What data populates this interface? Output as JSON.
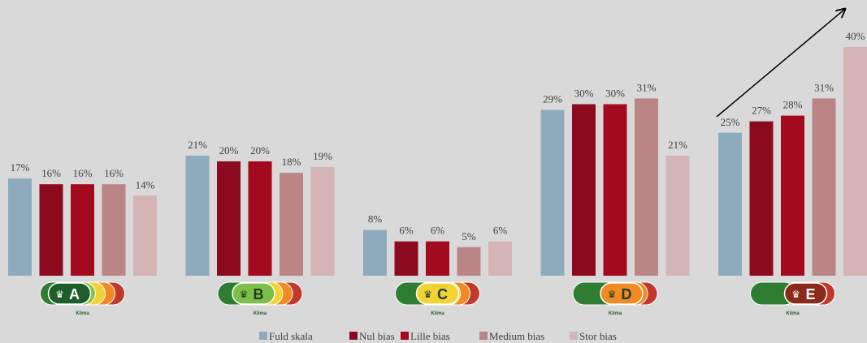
{
  "chart_data": {
    "type": "bar",
    "categories": [
      "A",
      "B",
      "C",
      "D",
      "E"
    ],
    "badge_caption": "Klima",
    "series": [
      {
        "name": "Fuld skala",
        "color": "#8eabbd",
        "values": [
          17,
          21,
          8,
          29,
          25
        ],
        "value_labels": [
          "17%",
          "21%",
          "8%",
          "29%",
          "25%"
        ]
      },
      {
        "name": "Nul bias",
        "color": "#8b0a1e",
        "values": [
          16,
          20,
          6,
          30,
          27
        ],
        "value_labels": [
          "16%",
          "20%",
          "6%",
          "30%",
          "27%"
        ]
      },
      {
        "name": "Lille bias",
        "color": "#a30a1f",
        "values": [
          16,
          20,
          6,
          30,
          28
        ],
        "value_labels": [
          "16%",
          "20%",
          "6%",
          "30%",
          "28%"
        ]
      },
      {
        "name": "Medium bias",
        "color": "#bb8585",
        "values": [
          16,
          18,
          5,
          31,
          31
        ],
        "value_labels": [
          "16%",
          "18%",
          "5%",
          "31%",
          "31%"
        ]
      },
      {
        "name": "Stor bias",
        "color": "#d4b4b5",
        "values": [
          14,
          19,
          6,
          21,
          40
        ],
        "value_labels": [
          "14%",
          "19%",
          "6%",
          "21%",
          "40%"
        ]
      }
    ]
  }
}
